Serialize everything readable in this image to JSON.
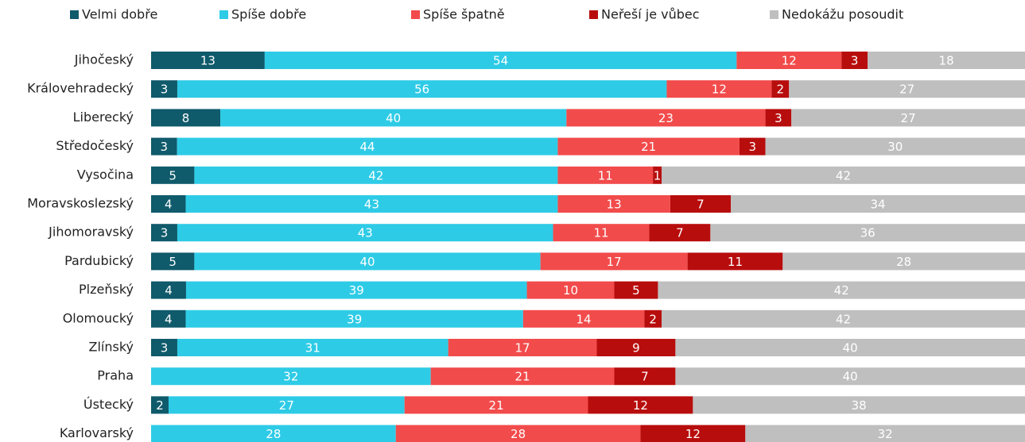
{
  "chart_data": {
    "type": "bar",
    "orientation": "horizontal",
    "stacked": true,
    "legend": "top",
    "categories": [
      "Jihočeský",
      "Královehradecký",
      "Liberecký",
      "Středočeský",
      "Vysočina",
      "Moravskoslezský",
      "Jihomoravský",
      "Pardubický",
      "Plzeňský",
      "Olomoucký",
      "Zlínský",
      "Praha",
      "Ústecký",
      "Karlovarský"
    ],
    "series": [
      {
        "name": "Velmi dobře",
        "color": "#0f5a6b",
        "values": [
          13,
          3,
          8,
          3,
          5,
          4,
          3,
          5,
          4,
          4,
          3,
          null,
          2,
          null
        ]
      },
      {
        "name": "Spíše dobře",
        "color": "#2ecbe6",
        "values": [
          54,
          56,
          40,
          44,
          42,
          43,
          43,
          40,
          39,
          39,
          31,
          32,
          27,
          28
        ]
      },
      {
        "name": "Spíše špatně",
        "color": "#f24b4b",
        "values": [
          12,
          12,
          23,
          21,
          11,
          13,
          11,
          17,
          10,
          14,
          17,
          21,
          21,
          28
        ]
      },
      {
        "name": "Neřeší je vůbec",
        "color": "#b80d0d",
        "values": [
          3,
          2,
          3,
          3,
          1,
          7,
          7,
          11,
          5,
          2,
          9,
          7,
          12,
          12
        ]
      },
      {
        "name": "Nedokážu posoudit",
        "color": "#bfbfbf",
        "values": [
          18,
          27,
          27,
          30,
          42,
          34,
          36,
          28,
          42,
          42,
          40,
          40,
          38,
          32
        ]
      }
    ]
  }
}
